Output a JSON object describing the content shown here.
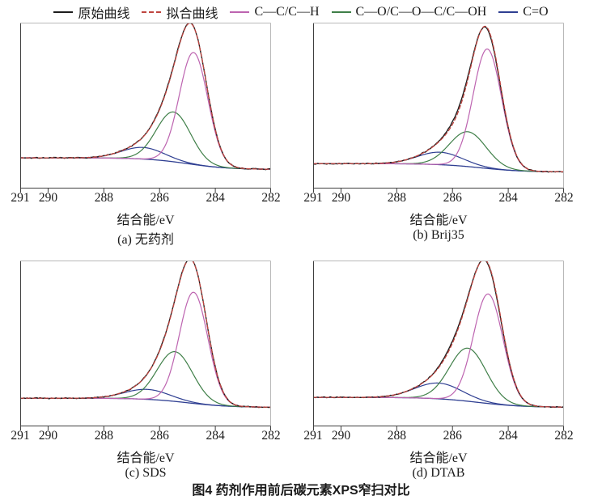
{
  "figure": {
    "caption": "图4 药剂作用前后碳元素XPS窄扫对比"
  },
  "colors": {
    "original": "#1c1c1c",
    "fitted": "#bf4540",
    "cc_ch": "#bd64b0",
    "co_group": "#3f7f48",
    "c_double_o": "#2f3f92",
    "axis_dark": "#3f3f3f",
    "axis_light": "#b8b8b8"
  },
  "chart_data": {
    "type": "line",
    "title": "药剂作用前后碳元素XPS窄扫对比",
    "xlabel": "结合能/eV",
    "ylabel": "",
    "x_axis": {
      "min": 291,
      "max": 282,
      "reversed": true,
      "ticks": [
        291,
        290,
        288,
        286,
        284,
        282
      ]
    },
    "grid": false,
    "legend_position": "top",
    "series_legend": [
      {
        "name": "原始曲线",
        "color": "#1c1c1c",
        "dash": "solid"
      },
      {
        "name": "拟合曲线",
        "color": "#bf4540",
        "dash": "dashed"
      },
      {
        "name": "C—C/C—H",
        "color": "#bd64b0",
        "dash": "solid"
      },
      {
        "name": "C—O/C—O—C/C—OH",
        "color": "#3f7f48",
        "dash": "solid"
      },
      {
        "name": "C=O",
        "color": "#2f3f92",
        "dash": "solid"
      }
    ],
    "panels": [
      {
        "id": "a",
        "caption": "(a) 无药剂",
        "background": {
          "left": 0.185,
          "right": 0.115,
          "center": 285.0,
          "width": 0.75
        },
        "peaks": [
          {
            "name": "C—C/C—H",
            "center": 284.78,
            "amplitude": 0.675,
            "fwhm": 1.2
          },
          {
            "name": "C—O/C—O—C/C—OH",
            "center": 285.5,
            "amplitude": 0.3,
            "fwhm": 1.45
          },
          {
            "name": "C=O",
            "center": 286.6,
            "amplitude": 0.07,
            "fwhm": 1.8
          }
        ],
        "fit_deviation": [
          {
            "center": 285.7,
            "amplitude": 0.007,
            "sigma": 0.5
          }
        ],
        "noise": 0.0045,
        "seed": 7
      },
      {
        "id": "b",
        "caption": "(b) Brij35",
        "background": {
          "left": 0.15,
          "right": 0.1,
          "center": 285.0,
          "width": 0.75
        },
        "peaks": [
          {
            "name": "C—C/C—H",
            "center": 284.75,
            "amplitude": 0.72,
            "fwhm": 1.2
          },
          {
            "name": "C—O/C—O—C/C—OH",
            "center": 285.45,
            "amplitude": 0.21,
            "fwhm": 1.55
          },
          {
            "name": "C=O",
            "center": 286.45,
            "amplitude": 0.075,
            "fwhm": 1.9
          }
        ],
        "fit_deviation": [
          {
            "center": 285.7,
            "amplitude": 0.02,
            "sigma": 0.45
          },
          {
            "center": 284.45,
            "amplitude": -0.014,
            "sigma": 0.35
          }
        ],
        "noise": 0.004,
        "seed": 13
      },
      {
        "id": "c",
        "caption": "(c) SDS",
        "background": {
          "left": 0.17,
          "right": 0.115,
          "center": 285.0,
          "width": 0.75
        },
        "peaks": [
          {
            "name": "C—C/C—H",
            "center": 284.78,
            "amplitude": 0.67,
            "fwhm": 1.2
          },
          {
            "name": "C—O/C—O—C/C—OH",
            "center": 285.45,
            "amplitude": 0.3,
            "fwhm": 1.5
          },
          {
            "name": "C=O",
            "center": 286.45,
            "amplitude": 0.06,
            "fwhm": 1.9
          }
        ],
        "fit_deviation": [
          {
            "center": 285.7,
            "amplitude": 0.006,
            "sigma": 0.5
          }
        ],
        "noise": 0.0045,
        "seed": 23
      },
      {
        "id": "d",
        "caption": "(d) DTAB",
        "background": {
          "left": 0.175,
          "right": 0.115,
          "center": 285.1,
          "width": 0.8
        },
        "peaks": [
          {
            "name": "C—C/C—H",
            "center": 284.72,
            "amplitude": 0.66,
            "fwhm": 1.25
          },
          {
            "name": "C—O/C—O—C/C—OH",
            "center": 285.45,
            "amplitude": 0.32,
            "fwhm": 1.55
          },
          {
            "name": "C=O",
            "center": 286.5,
            "amplitude": 0.095,
            "fwhm": 2.0
          }
        ],
        "fit_deviation": [
          {
            "center": 285.9,
            "amplitude": 0.014,
            "sigma": 0.5
          },
          {
            "center": 284.35,
            "amplitude": -0.012,
            "sigma": 0.35
          }
        ],
        "noise": 0.004,
        "seed": 31
      }
    ]
  }
}
